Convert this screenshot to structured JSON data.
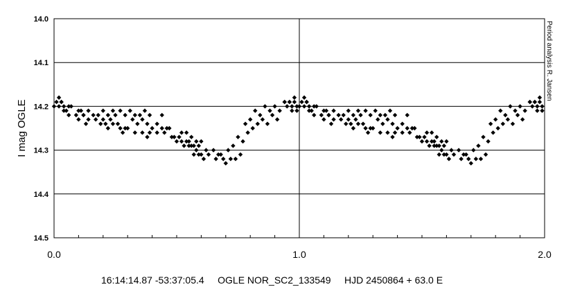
{
  "chart_data": {
    "type": "scatter",
    "title": "",
    "caption": "16:14:14.87 -53:37:05.4     OGLE NOR_SC2_133549     HJD 2450864 + 63.0 E",
    "credit": "Period analysis R. Jansen",
    "xlabel": "",
    "ylabel": "I mag OGLE",
    "xlim": [
      0.0,
      2.0
    ],
    "ylim": [
      14.0,
      14.5
    ],
    "y_inverted": true,
    "x_major_ticks": [
      0.0,
      1.0,
      2.0
    ],
    "x_tick_labels": [
      "0.0",
      "1.0",
      "2.0"
    ],
    "x_minor_step": 0.1,
    "y_ticks": [
      14.0,
      14.1,
      14.2,
      14.3,
      14.4,
      14.5
    ],
    "y_tick_labels": [
      "14.0",
      "14.1",
      "14.2",
      "14.3",
      "14.4",
      "14.5"
    ],
    "grid": "horizontal at y ticks, vertical at x = 1.0",
    "marker": "diamond",
    "marker_color": "#000000",
    "series": [
      {
        "x": [
          0.01,
          0.02,
          0.03,
          0.04,
          0.05,
          0.06,
          0.0,
          0.02,
          0.03,
          0.04,
          0.06,
          0.07,
          0.09,
          0.1,
          0.11,
          0.12,
          0.13,
          0.14,
          0.1,
          0.12,
          0.14,
          0.16,
          0.17,
          0.18,
          0.19,
          0.2,
          0.21,
          0.22,
          0.23,
          0.24,
          0.26,
          0.27,
          0.28,
          0.29,
          0.3,
          0.2,
          0.22,
          0.24,
          0.25,
          0.27,
          0.29,
          0.31,
          0.33,
          0.35,
          0.37,
          0.39,
          0.32,
          0.34,
          0.36,
          0.38,
          0.4,
          0.42,
          0.44,
          0.46,
          0.33,
          0.36,
          0.39,
          0.42,
          0.38,
          0.44,
          0.45,
          0.47,
          0.48,
          0.49,
          0.5,
          0.51,
          0.52,
          0.53,
          0.54,
          0.55,
          0.56,
          0.57,
          0.58,
          0.59,
          0.6,
          0.52,
          0.54,
          0.56,
          0.58,
          0.6,
          0.62,
          0.55,
          0.57,
          0.59,
          0.61,
          0.63,
          0.65,
          0.67,
          0.69,
          0.71,
          0.73,
          0.66,
          0.68,
          0.7,
          0.72,
          0.74,
          0.76,
          0.75,
          0.77,
          0.79,
          0.81,
          0.78,
          0.8,
          0.82,
          0.84,
          0.86,
          0.88,
          0.9,
          0.92,
          0.94,
          0.83,
          0.85,
          0.87,
          0.89,
          0.91,
          0.95,
          0.96,
          0.97,
          0.98,
          0.99,
          0.94,
          0.96,
          0.97,
          0.99,
          0.98,
          1.01,
          1.02,
          1.03,
          1.04,
          1.05,
          1.06,
          1.0,
          1.02,
          1.03,
          1.04,
          1.06,
          1.07,
          1.09,
          1.1,
          1.11,
          1.12,
          1.13,
          1.14,
          1.1,
          1.12,
          1.14,
          1.16,
          1.17,
          1.18,
          1.19,
          1.2,
          1.21,
          1.22,
          1.23,
          1.24,
          1.26,
          1.27,
          1.28,
          1.29,
          1.3,
          1.2,
          1.22,
          1.24,
          1.25,
          1.27,
          1.29,
          1.31,
          1.33,
          1.35,
          1.37,
          1.39,
          1.32,
          1.34,
          1.36,
          1.38,
          1.4,
          1.42,
          1.44,
          1.46,
          1.33,
          1.36,
          1.39,
          1.42,
          1.38,
          1.44,
          1.45,
          1.47,
          1.48,
          1.49,
          1.5,
          1.51,
          1.52,
          1.53,
          1.54,
          1.55,
          1.56,
          1.57,
          1.58,
          1.59,
          1.6,
          1.52,
          1.54,
          1.56,
          1.58,
          1.6,
          1.62,
          1.55,
          1.57,
          1.59,
          1.61,
          1.63,
          1.65,
          1.67,
          1.69,
          1.71,
          1.73,
          1.66,
          1.68,
          1.7,
          1.72,
          1.74,
          1.76,
          1.75,
          1.77,
          1.79,
          1.81,
          1.78,
          1.8,
          1.82,
          1.84,
          1.86,
          1.88,
          1.9,
          1.92,
          1.94,
          1.83,
          1.85,
          1.87,
          1.89,
          1.91,
          1.95,
          1.96,
          1.97,
          1.98,
          1.99,
          1.94,
          1.96,
          1.97,
          1.99,
          1.98
        ],
        "y": [
          14.19,
          14.2,
          14.19,
          14.2,
          14.21,
          14.2,
          14.2,
          14.18,
          14.19,
          14.21,
          14.22,
          14.2,
          14.22,
          14.23,
          14.21,
          14.22,
          14.24,
          14.23,
          14.21,
          14.22,
          14.21,
          14.22,
          14.23,
          14.22,
          14.24,
          14.23,
          14.24,
          14.25,
          14.23,
          14.24,
          14.24,
          14.25,
          14.26,
          14.25,
          14.25,
          14.21,
          14.22,
          14.21,
          14.22,
          14.21,
          14.22,
          14.21,
          14.22,
          14.22,
          14.21,
          14.22,
          14.23,
          14.24,
          14.23,
          14.24,
          14.25,
          14.24,
          14.25,
          14.25,
          14.26,
          14.26,
          14.26,
          14.26,
          14.27,
          14.22,
          14.26,
          14.25,
          14.27,
          14.27,
          14.28,
          14.27,
          14.28,
          14.29,
          14.28,
          14.28,
          14.29,
          14.29,
          14.3,
          14.29,
          14.31,
          14.26,
          14.26,
          14.27,
          14.28,
          14.28,
          14.3,
          14.29,
          14.31,
          14.31,
          14.32,
          14.31,
          14.3,
          14.31,
          14.32,
          14.3,
          14.29,
          14.32,
          14.31,
          14.33,
          14.32,
          14.32,
          14.31,
          14.27,
          14.28,
          14.26,
          14.25,
          14.24,
          14.23,
          14.21,
          14.22,
          14.2,
          14.21,
          14.2,
          14.21,
          14.19,
          14.24,
          14.23,
          14.24,
          14.22,
          14.23,
          14.2,
          14.19,
          14.21,
          14.19,
          14.2,
          14.19,
          14.19,
          14.2,
          14.21,
          14.18,
          14.19,
          14.2,
          14.19,
          14.2,
          14.21,
          14.2,
          14.2,
          14.18,
          14.19,
          14.21,
          14.22,
          14.2,
          14.22,
          14.23,
          14.21,
          14.22,
          14.24,
          14.23,
          14.21,
          14.22,
          14.21,
          14.22,
          14.23,
          14.22,
          14.24,
          14.23,
          14.24,
          14.25,
          14.23,
          14.24,
          14.24,
          14.25,
          14.26,
          14.25,
          14.25,
          14.21,
          14.22,
          14.21,
          14.22,
          14.21,
          14.22,
          14.21,
          14.22,
          14.22,
          14.21,
          14.22,
          14.23,
          14.24,
          14.23,
          14.24,
          14.25,
          14.24,
          14.25,
          14.25,
          14.26,
          14.26,
          14.26,
          14.26,
          14.27,
          14.22,
          14.26,
          14.25,
          14.27,
          14.27,
          14.28,
          14.27,
          14.28,
          14.29,
          14.28,
          14.28,
          14.29,
          14.29,
          14.3,
          14.29,
          14.31,
          14.26,
          14.26,
          14.27,
          14.28,
          14.28,
          14.3,
          14.29,
          14.31,
          14.31,
          14.32,
          14.31,
          14.3,
          14.31,
          14.32,
          14.3,
          14.29,
          14.32,
          14.31,
          14.33,
          14.32,
          14.32,
          14.31,
          14.27,
          14.28,
          14.26,
          14.25,
          14.24,
          14.23,
          14.21,
          14.22,
          14.2,
          14.21,
          14.2,
          14.21,
          14.19,
          14.24,
          14.23,
          14.24,
          14.22,
          14.23,
          14.2,
          14.19,
          14.21,
          14.19,
          14.2,
          14.19,
          14.19,
          14.2,
          14.21,
          14.18
        ]
      }
    ]
  }
}
